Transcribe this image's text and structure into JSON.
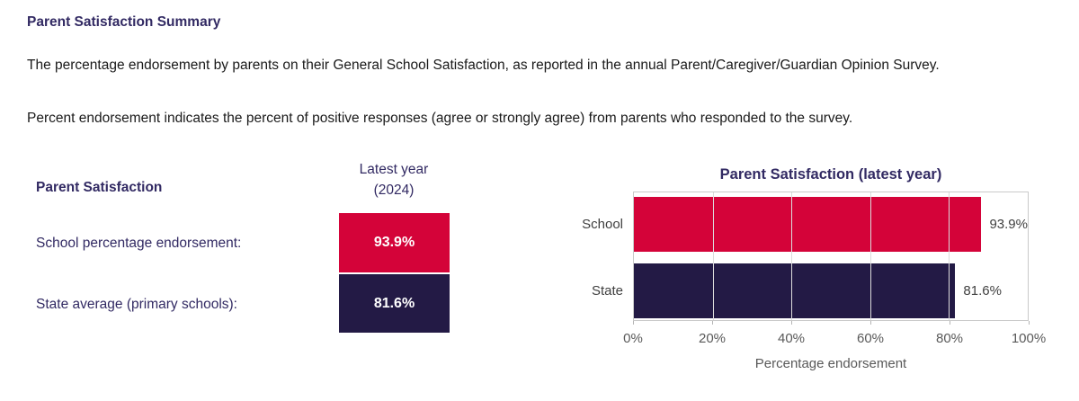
{
  "page": {
    "title": "Parent Satisfaction Summary",
    "intro": "The percentage endorsement by parents on their General School Satisfaction, as reported in the annual Parent/Caregiver/Guardian Opinion Survey.",
    "definition": "Percent endorsement indicates the percent of positive responses (agree or strongly agree) from parents who responded to the survey."
  },
  "summary_table": {
    "title": "Parent Satisfaction",
    "column_header_line1": "Latest year",
    "column_header_line2": "(2024)",
    "rows": [
      {
        "label": "School percentage endorsement:",
        "value": "93.9%",
        "color": "#d40339"
      },
      {
        "label": "State average (primary schools):",
        "value": "81.6%",
        "color": "#231a45"
      }
    ]
  },
  "chart_data": {
    "type": "bar",
    "orientation": "horizontal",
    "title": "Parent Satisfaction (latest year)",
    "categories": [
      "School",
      "State"
    ],
    "values": [
      93.9,
      81.6
    ],
    "value_labels": [
      "93.9%",
      "81.6%"
    ],
    "bar_colors": [
      "#d40339",
      "#231a45"
    ],
    "xlabel": "Percentage endorsement",
    "x_ticks": [
      "0%",
      "20%",
      "40%",
      "60%",
      "80%",
      "100%"
    ],
    "xlim": [
      0,
      100
    ],
    "grid": true,
    "legend": false
  },
  "colors": {
    "accent_red": "#d40339",
    "accent_navy": "#231a45",
    "heading_navy": "#322a63",
    "tick_gray": "#595959"
  }
}
